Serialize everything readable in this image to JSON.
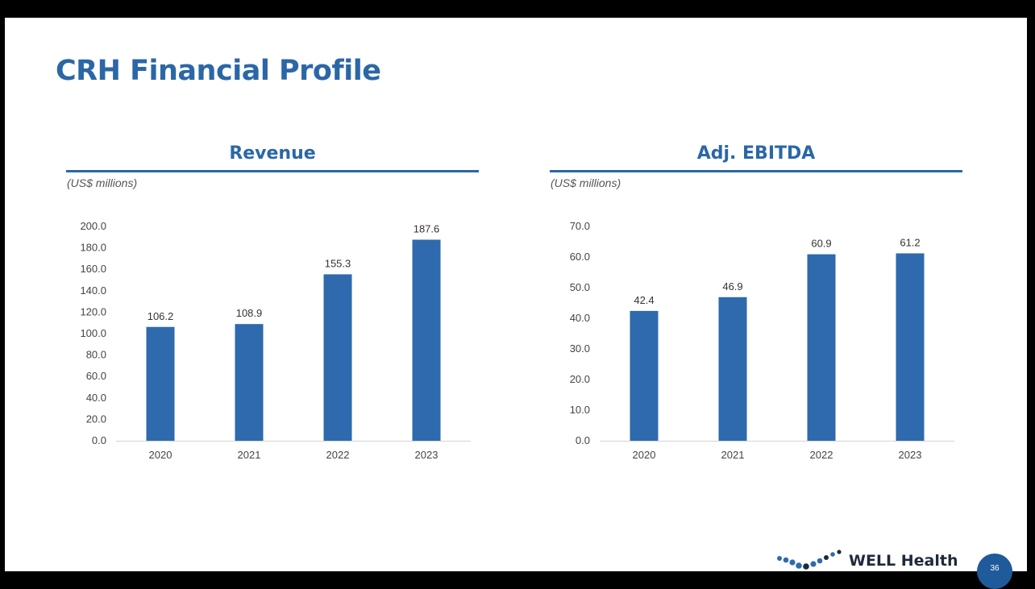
{
  "slide": {
    "title": "CRH Financial Profile",
    "page_number": "36",
    "logo_text": "WELL Health"
  },
  "colors": {
    "accent": "#2b67a6",
    "bar": "#2e6aad"
  },
  "chart_data": [
    {
      "type": "bar",
      "title": "Revenue",
      "unit_note": "(US$ millions)",
      "categories": [
        "2020",
        "2021",
        "2022",
        "2023"
      ],
      "values": [
        106.2,
        108.9,
        155.3,
        187.6
      ],
      "value_labels": [
        "106.2",
        "108.9",
        "155.3",
        "187.6"
      ],
      "ylim": [
        0,
        200
      ],
      "yticks": [
        "0.0",
        "20.0",
        "40.0",
        "60.0",
        "80.0",
        "100.0",
        "120.0",
        "140.0",
        "160.0",
        "180.0",
        "200.0"
      ],
      "grid": false,
      "legend": "none"
    },
    {
      "type": "bar",
      "title": "Adj. EBITDA",
      "unit_note": "(US$ millions)",
      "categories": [
        "2020",
        "2021",
        "2022",
        "2023"
      ],
      "values": [
        42.4,
        46.9,
        60.9,
        61.2
      ],
      "value_labels": [
        "42.4",
        "46.9",
        "60.9",
        "61.2"
      ],
      "ylim": [
        0,
        70
      ],
      "yticks": [
        "0.0",
        "10.0",
        "20.0",
        "30.0",
        "40.0",
        "50.0",
        "60.0",
        "70.0"
      ],
      "grid": false,
      "legend": "none"
    }
  ]
}
